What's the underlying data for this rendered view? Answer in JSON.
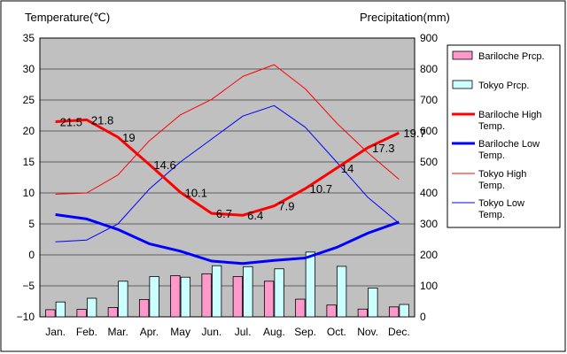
{
  "chart_data": {
    "type": "bar+line",
    "y_left_label": "Temperature(℃)",
    "y_right_label": "Precipitation(mm)",
    "y_left_range": [
      -10,
      35
    ],
    "y_left_ticks": [
      "35",
      "30",
      "25",
      "20",
      "15",
      "10",
      "5",
      "0",
      "−5",
      "−10"
    ],
    "y_right_range": [
      0,
      900
    ],
    "y_right_ticks": [
      "900",
      "800",
      "700",
      "600",
      "500",
      "400",
      "300",
      "200",
      "100",
      "0"
    ],
    "categories": [
      "Jan.",
      "Feb.",
      "Mar.",
      "Apr.",
      "May",
      "Jun.",
      "Jul.",
      "Aug.",
      "Sep.",
      "Oct.",
      "Nov.",
      "Dec."
    ],
    "grid": true,
    "legend_position": "right",
    "bar_series": [
      {
        "name": "Bariloche Prcp.",
        "color": "#ff99cc",
        "values": [
          23,
          24,
          30,
          56,
          133,
          139,
          130,
          115,
          57,
          38,
          25,
          32
        ]
      },
      {
        "name": "Tokyo Prcp.",
        "color": "#ccffff",
        "values": [
          48,
          60,
          115,
          130,
          128,
          165,
          162,
          155,
          209,
          163,
          93,
          40
        ]
      }
    ],
    "line_series": [
      {
        "name": "Bariloche High Temp.",
        "color": "#ff0000",
        "width": 3,
        "values": [
          21.5,
          21.8,
          19,
          14.6,
          10.1,
          6.7,
          6.4,
          7.9,
          10.7,
          14,
          17.3,
          19.7
        ],
        "labels": [
          "21.5",
          "21.8",
          "19",
          "14.6",
          "10.1",
          "6.7",
          "6.4",
          "7.9",
          "10.7",
          "14",
          "17.3",
          "19.7"
        ]
      },
      {
        "name": "Bariloche Low Temp.",
        "color": "#0000ff",
        "width": 3,
        "values": [
          6.5,
          5.8,
          4.1,
          1.8,
          0.6,
          -1.0,
          -1.4,
          -0.9,
          -0.5,
          1.2,
          3.5,
          5.3
        ]
      },
      {
        "name": "Tokyo High Temp.",
        "color": "#ff0000",
        "width": 1,
        "values": [
          9.8,
          10.0,
          12.9,
          18.4,
          22.6,
          25.1,
          28.8,
          30.7,
          26.8,
          21.3,
          16.5,
          12.2
        ]
      },
      {
        "name": "Tokyo Low Temp.",
        "color": "#0000ff",
        "width": 1,
        "values": [
          2.1,
          2.4,
          5.0,
          10.6,
          15.0,
          18.7,
          22.4,
          24.1,
          20.6,
          15.0,
          9.3,
          5.1
        ]
      }
    ]
  }
}
